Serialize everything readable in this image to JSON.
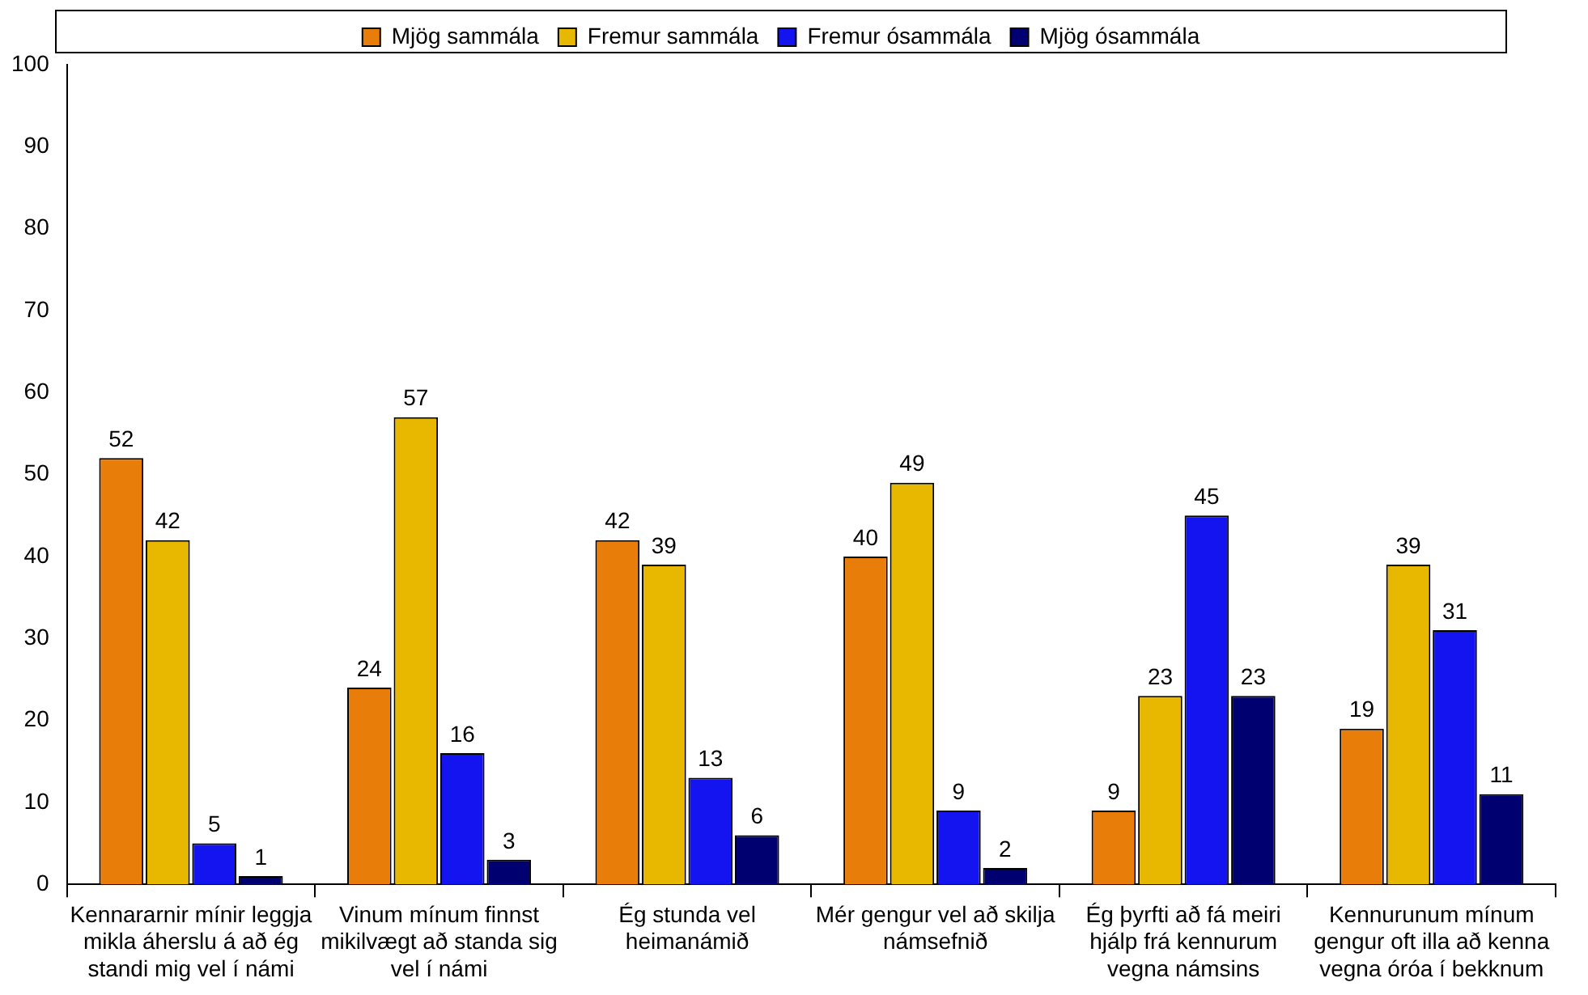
{
  "chart_data": {
    "type": "bar",
    "categories": [
      "Kennararnir mínir leggja mikla áherslu á að ég standi mig vel í námi",
      "Vinum mínum finnst mikilvægt að standa sig vel í námi",
      "Ég stunda vel heimanámið",
      "Mér gengur vel að skilja námsefnið",
      "Ég þyrfti að fá meiri hjálp frá kennurum vegna námsins",
      "Kennurunum mínum gengur oft illa að kenna vegna óróa í bekknum"
    ],
    "series": [
      {
        "name": "Mjög sammála",
        "color": "#e87d0a",
        "values": [
          52,
          24,
          42,
          40,
          9,
          19
        ]
      },
      {
        "name": "Fremur sammála",
        "color": "#e8b800",
        "values": [
          42,
          57,
          39,
          49,
          23,
          39
        ]
      },
      {
        "name": "Fremur ósammála",
        "color": "#1414f0",
        "values": [
          5,
          16,
          13,
          9,
          45,
          31
        ]
      },
      {
        "name": "Mjög ósammála",
        "color": "#000070",
        "values": [
          1,
          3,
          6,
          2,
          23,
          11
        ]
      }
    ],
    "ylim": [
      0,
      100
    ],
    "yticks": [
      0,
      10,
      20,
      30,
      40,
      50,
      60,
      70,
      80,
      90,
      100
    ],
    "grid": false,
    "legend": "top",
    "data_labels": true
  }
}
